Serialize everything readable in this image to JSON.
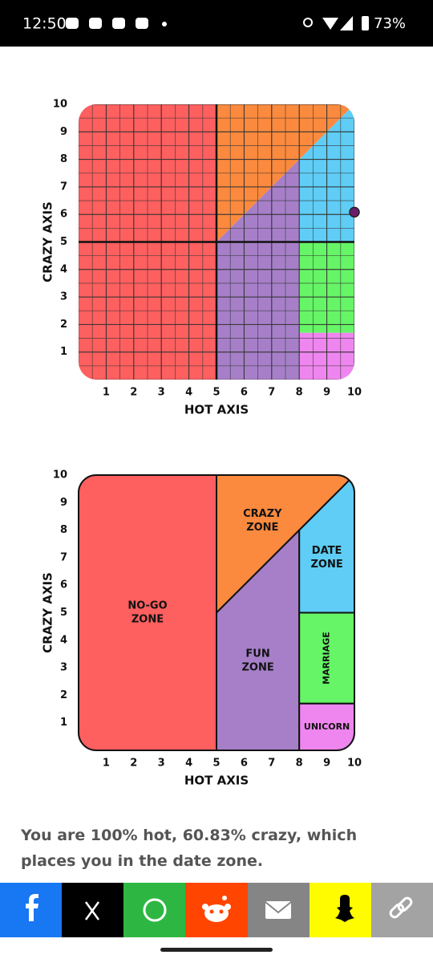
{
  "status_bar": {
    "time": "12:50",
    "battery": "73%"
  },
  "chart_data": [
    {
      "type": "scatter",
      "x_label": "HOT AXIS",
      "y_label": "CRAZY AXIS",
      "xlim": [
        0,
        10
      ],
      "ylim": [
        0,
        10
      ],
      "xticks": [
        1,
        2,
        3,
        4,
        5,
        6,
        7,
        8,
        9,
        10
      ],
      "yticks": [
        1,
        2,
        3,
        4,
        5,
        6,
        7,
        8,
        9,
        10
      ],
      "x": [
        10
      ],
      "y": [
        6.083
      ],
      "color": "#6b1f6b",
      "grid": true
    },
    {
      "type": "zones",
      "x_label": "HOT AXIS",
      "y_label": "CRAZY AXIS",
      "xlim": [
        0,
        10
      ],
      "ylim": [
        0,
        10
      ],
      "xticks": [
        1,
        2,
        3,
        4,
        5,
        6,
        7,
        8,
        9,
        10
      ],
      "yticks": [
        1,
        2,
        3,
        4,
        5,
        6,
        7,
        8,
        9,
        10
      ],
      "zones": [
        {
          "label": [
            "NO-GO",
            "ZONE"
          ],
          "color": "#fe5f5f",
          "points": [
            [
              0,
              0
            ],
            [
              5,
              0
            ],
            [
              5,
              10
            ],
            [
              0,
              10
            ]
          ]
        },
        {
          "label": [
            "CRAZY",
            "ZONE"
          ],
          "color": "#fb8a3e",
          "points": [
            [
              5,
              5
            ],
            [
              10,
              10
            ],
            [
              5,
              10
            ]
          ]
        },
        {
          "label": [
            "FUN",
            "ZONE"
          ],
          "color": "#a67fc8",
          "points": [
            [
              5,
              0
            ],
            [
              8,
              0
            ],
            [
              8,
              8
            ],
            [
              5,
              5
            ]
          ]
        },
        {
          "label": [
            "DATE",
            "ZONE"
          ],
          "color": "#5fcdf5",
          "points": [
            [
              8,
              5
            ],
            [
              10,
              5
            ],
            [
              10,
              10
            ],
            [
              8,
              8
            ]
          ]
        },
        {
          "label": [
            "MARRIAGE"
          ],
          "color": "#66f566",
          "rotated": true,
          "points": [
            [
              8,
              1.7
            ],
            [
              10,
              1.7
            ],
            [
              10,
              5
            ],
            [
              8,
              5
            ]
          ]
        },
        {
          "label": [
            "UNICORN"
          ],
          "color": "#ef86ef",
          "points": [
            [
              8,
              0
            ],
            [
              10,
              0
            ],
            [
              10,
              1.7
            ],
            [
              8,
              1.7
            ]
          ]
        }
      ]
    }
  ],
  "result_text": "You are 100% hot, 60.83% crazy, which places you in the date zone."
}
